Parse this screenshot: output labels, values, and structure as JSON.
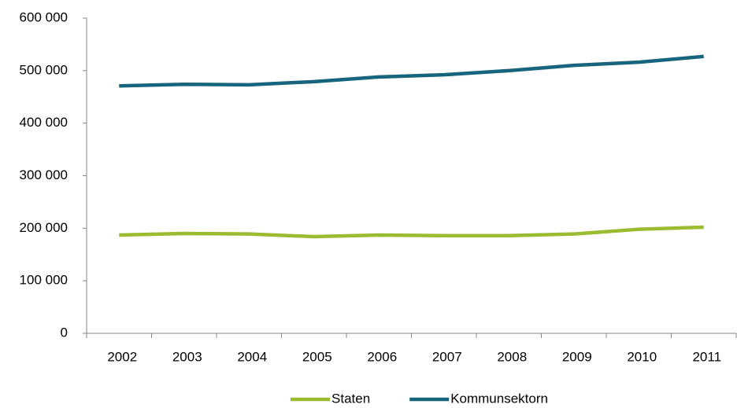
{
  "chart_data": {
    "type": "line",
    "categories": [
      "2002",
      "2003",
      "2004",
      "2005",
      "2006",
      "2007",
      "2008",
      "2009",
      "2010",
      "2011"
    ],
    "series": [
      {
        "name": "Staten",
        "color": "#9bbb30",
        "values": [
          187000,
          190000,
          189000,
          184000,
          187000,
          186000,
          186000,
          189000,
          198000,
          202000
        ]
      },
      {
        "name": "Kommunsektorn",
        "color": "#17657d",
        "values": [
          471000,
          474000,
          473000,
          479000,
          488000,
          492000,
          500000,
          510000,
          516000,
          527000
        ]
      }
    ],
    "ylim": [
      0,
      600000
    ],
    "yticks": [
      0,
      {
        "value": 100000,
        "label": "100 000"
      },
      {
        "value": 200000,
        "label": "200 000"
      },
      {
        "value": 300000,
        "label": "300 000"
      },
      {
        "value": 400000,
        "label": "400 000"
      },
      {
        "value": 500000,
        "label": "500 000"
      },
      {
        "value": 600000,
        "label": "600 000"
      }
    ],
    "grid": false,
    "legend": "bottom"
  }
}
